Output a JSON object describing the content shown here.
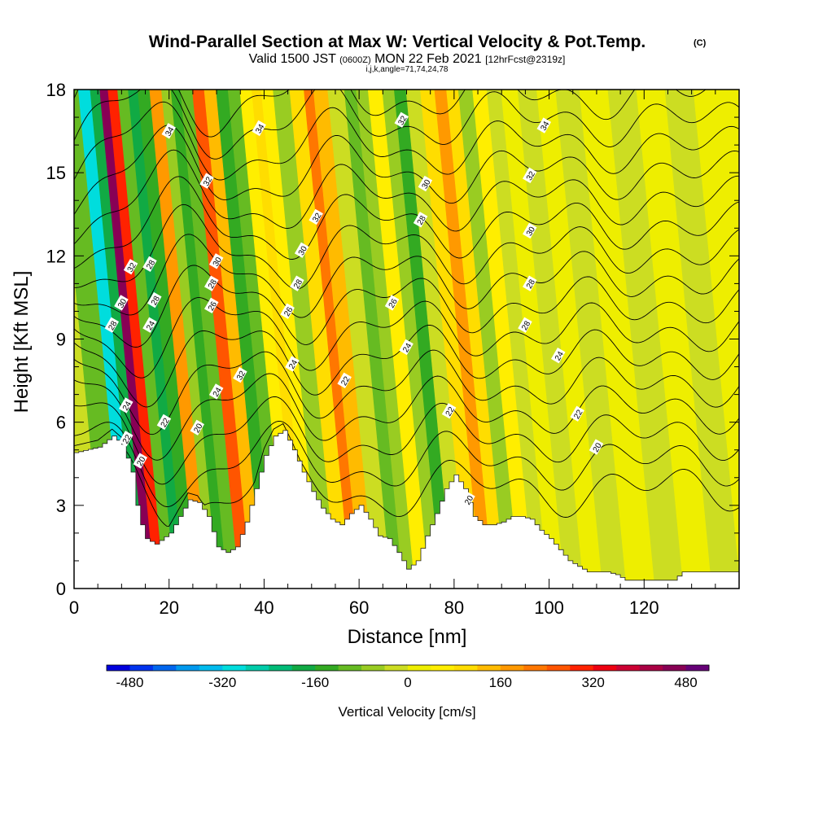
{
  "chart_data": {
    "type": "heatmap",
    "title": "Wind-Parallel Section at Max W: Vertical Velocity & Pot.Temp.",
    "title_mark": "(C)",
    "subtitle": {
      "prefix": "Valid 1500 JST",
      "utc": "(0600Z)",
      "date": "MON 22 Feb 2021",
      "fcst": "[12hrFcst@2319z]"
    },
    "indices": "i,j,k,angle=71,74,24,78",
    "xlabel": "Distance [nm]",
    "ylabel": "Height [Kft MSL]",
    "xlim": [
      0,
      140
    ],
    "ylim": [
      0,
      18
    ],
    "x_ticks": [
      "0",
      "20",
      "40",
      "60",
      "80",
      "100",
      "120"
    ],
    "y_ticks": [
      "0",
      "3",
      "6",
      "9",
      "12",
      "15",
      "18"
    ],
    "colorbar": {
      "label": "Vertical Velocity [cm/s]",
      "range": [
        -520,
        520
      ],
      "step": 40,
      "tick_labels": [
        "-480",
        "-320",
        "-160",
        "0",
        "160",
        "320",
        "480"
      ],
      "colors": [
        "#0000dd",
        "#0033ee",
        "#0066ee",
        "#0099ee",
        "#00bbee",
        "#00dddd",
        "#00ccaa",
        "#00bb77",
        "#11aa44",
        "#33aa22",
        "#66bb22",
        "#99cc22",
        "#ccdd22",
        "#eeee00",
        "#ffee00",
        "#ffdd00",
        "#ffbb00",
        "#ff9900",
        "#ff7700",
        "#ff5500",
        "#ff2200",
        "#ee0011",
        "#cc0033",
        "#aa0044",
        "#880055",
        "#660077"
      ]
    },
    "terrain": [
      [
        0,
        4.9
      ],
      [
        5,
        5.1
      ],
      [
        8,
        5.5
      ],
      [
        10,
        5.2
      ],
      [
        12,
        4.2
      ],
      [
        13,
        3.0
      ],
      [
        14,
        2.3
      ],
      [
        15,
        1.8
      ],
      [
        17,
        1.6
      ],
      [
        20,
        2.0
      ],
      [
        22,
        2.6
      ],
      [
        24,
        3.2
      ],
      [
        26,
        3.1
      ],
      [
        28,
        2.6
      ],
      [
        30,
        1.5
      ],
      [
        32,
        1.3
      ],
      [
        34,
        1.5
      ],
      [
        36,
        2.4
      ],
      [
        38,
        3.6
      ],
      [
        40,
        4.8
      ],
      [
        42,
        5.5
      ],
      [
        44,
        5.7
      ],
      [
        46,
        5.0
      ],
      [
        48,
        4.2
      ],
      [
        50,
        3.5
      ],
      [
        52,
        2.9
      ],
      [
        54,
        2.5
      ],
      [
        56,
        2.3
      ],
      [
        58,
        2.7
      ],
      [
        60,
        3.0
      ],
      [
        62,
        2.5
      ],
      [
        64,
        1.9
      ],
      [
        66,
        1.8
      ],
      [
        68,
        1.3
      ],
      [
        70,
        0.7
      ],
      [
        72,
        1.0
      ],
      [
        74,
        1.9
      ],
      [
        76,
        2.7
      ],
      [
        78,
        3.6
      ],
      [
        80,
        4.1
      ],
      [
        82,
        3.6
      ],
      [
        84,
        2.6
      ],
      [
        86,
        2.3
      ],
      [
        88,
        2.3
      ],
      [
        90,
        2.4
      ],
      [
        92,
        2.6
      ],
      [
        94,
        2.6
      ],
      [
        96,
        2.5
      ],
      [
        98,
        2.1
      ],
      [
        100,
        1.8
      ],
      [
        102,
        1.4
      ],
      [
        104,
        1.0
      ],
      [
        106,
        0.8
      ],
      [
        108,
        0.6
      ],
      [
        112,
        0.6
      ],
      [
        114,
        0.5
      ],
      [
        116,
        0.3
      ],
      [
        126,
        0.3
      ],
      [
        128,
        0.6
      ],
      [
        140,
        0.6
      ]
    ],
    "w_bands": [
      {
        "x": 0,
        "w": -40
      },
      {
        "x": 6,
        "w": -100
      },
      {
        "x": 9,
        "w": -300
      },
      {
        "x": 11,
        "w": -200
      },
      {
        "x": 13,
        "w": 450
      },
      {
        "x": 14.5,
        "w": 300
      },
      {
        "x": 17,
        "w": -100
      },
      {
        "x": 19,
        "w": -200
      },
      {
        "x": 21,
        "w": -140
      },
      {
        "x": 24,
        "w": 160
      },
      {
        "x": 26,
        "w": -80
      },
      {
        "x": 28,
        "w": -160
      },
      {
        "x": 30,
        "w": -100
      },
      {
        "x": 33,
        "w": 240
      },
      {
        "x": 35,
        "w": 120
      },
      {
        "x": 38,
        "w": -160
      },
      {
        "x": 40,
        "w": -100
      },
      {
        "x": 43,
        "w": 40
      },
      {
        "x": 45,
        "w": 100
      },
      {
        "x": 47,
        "w": 60
      },
      {
        "x": 50,
        "w": -60
      },
      {
        "x": 54,
        "w": 100
      },
      {
        "x": 56,
        "w": 200
      },
      {
        "x": 58,
        "w": 140
      },
      {
        "x": 62,
        "w": -20
      },
      {
        "x": 65,
        "w": -100
      },
      {
        "x": 67,
        "w": -60
      },
      {
        "x": 70,
        "w": 60
      },
      {
        "x": 73,
        "w": -80
      },
      {
        "x": 75,
        "w": -140
      },
      {
        "x": 78,
        "w": -40
      },
      {
        "x": 81,
        "w": 100
      },
      {
        "x": 84,
        "w": 160
      },
      {
        "x": 86,
        "w": 80
      },
      {
        "x": 89,
        "w": -60
      },
      {
        "x": 92,
        "w": 40
      },
      {
        "x": 95,
        "w": -40
      },
      {
        "x": 98,
        "w": 20
      },
      {
        "x": 102,
        "w": -40
      },
      {
        "x": 106,
        "w": 0
      },
      {
        "x": 110,
        "w": -40
      },
      {
        "x": 116,
        "w": 0
      },
      {
        "x": 122,
        "w": -40
      },
      {
        "x": 128,
        "w": 0
      },
      {
        "x": 134,
        "w": -20
      },
      {
        "x": 140,
        "w": 0
      }
    ],
    "theta_contours": {
      "levels_K": [
        20,
        21,
        22,
        23,
        24,
        25,
        26,
        27,
        28,
        29,
        30,
        31,
        32,
        33,
        34,
        35
      ],
      "labels": [
        {
          "text": "34",
          "x": 20,
          "y": 16.5
        },
        {
          "text": "34",
          "x": 39,
          "y": 16.6
        },
        {
          "text": "32",
          "x": 69,
          "y": 16.9
        },
        {
          "text": "34",
          "x": 99,
          "y": 16.7
        },
        {
          "text": "32",
          "x": 28,
          "y": 14.7
        },
        {
          "text": "30",
          "x": 74,
          "y": 14.6
        },
        {
          "text": "32",
          "x": 96,
          "y": 14.9
        },
        {
          "text": "32",
          "x": 51,
          "y": 13.4
        },
        {
          "text": "28",
          "x": 73,
          "y": 13.3
        },
        {
          "text": "30",
          "x": 96,
          "y": 12.9
        },
        {
          "text": "30",
          "x": 48,
          "y": 12.2
        },
        {
          "text": "32",
          "x": 12,
          "y": 11.6
        },
        {
          "text": "28",
          "x": 16,
          "y": 11.7
        },
        {
          "text": "30",
          "x": 30,
          "y": 11.8
        },
        {
          "text": "28",
          "x": 29,
          "y": 11.0
        },
        {
          "text": "28",
          "x": 47,
          "y": 11.0
        },
        {
          "text": "28",
          "x": 96,
          "y": 11.0
        },
        {
          "text": "30",
          "x": 10,
          "y": 10.3
        },
        {
          "text": "28",
          "x": 17,
          "y": 10.4
        },
        {
          "text": "26",
          "x": 29,
          "y": 10.2
        },
        {
          "text": "26",
          "x": 45,
          "y": 10.0
        },
        {
          "text": "26",
          "x": 67,
          "y": 10.3
        },
        {
          "text": "28",
          "x": 8,
          "y": 9.5
        },
        {
          "text": "24",
          "x": 16,
          "y": 9.5
        },
        {
          "text": "28",
          "x": 95,
          "y": 9.5
        },
        {
          "text": "24",
          "x": 70,
          "y": 8.7
        },
        {
          "text": "24",
          "x": 102,
          "y": 8.4
        },
        {
          "text": "24",
          "x": 46,
          "y": 8.1
        },
        {
          "text": "32",
          "x": 35,
          "y": 7.7
        },
        {
          "text": "22",
          "x": 57,
          "y": 7.5
        },
        {
          "text": "24",
          "x": 30,
          "y": 7.1
        },
        {
          "text": "24",
          "x": 11,
          "y": 6.6
        },
        {
          "text": "22",
          "x": 19,
          "y": 6.0
        },
        {
          "text": "20",
          "x": 26,
          "y": 5.8
        },
        {
          "text": "22",
          "x": 79,
          "y": 6.4
        },
        {
          "text": "22",
          "x": 106,
          "y": 6.3
        },
        {
          "text": "22",
          "x": 11,
          "y": 5.4
        },
        {
          "text": "20",
          "x": 110,
          "y": 5.1
        },
        {
          "text": "20",
          "x": 14,
          "y": 4.6
        },
        {
          "text": "20",
          "x": 83,
          "y": 3.2
        }
      ]
    }
  }
}
